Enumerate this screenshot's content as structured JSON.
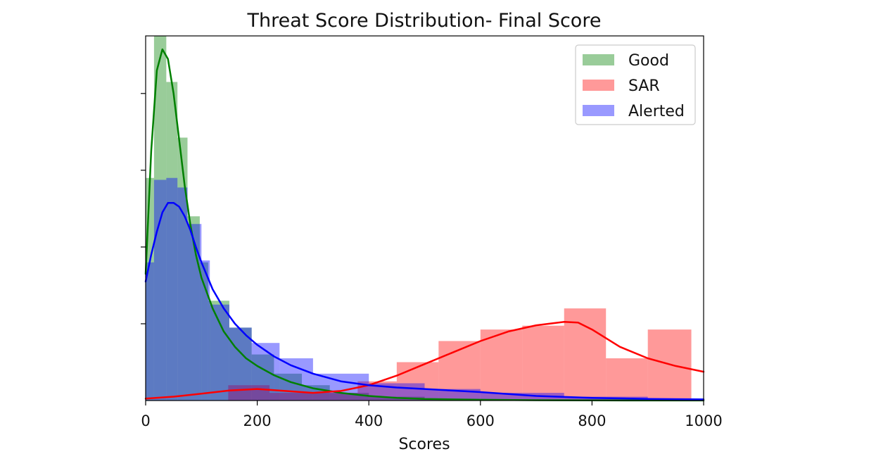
{
  "chart_data": {
    "type": "histogram",
    "title": "Threat Score Distribution- Final Score",
    "xlabel": "Scores",
    "ylabel": "",
    "xlim": [
      0,
      1000
    ],
    "ylim": [
      0,
      0.0095
    ],
    "x_ticks": [
      0,
      200,
      400,
      600,
      800,
      1000
    ],
    "y_ticks": [
      0.002,
      0.004,
      0.006,
      0.008
    ],
    "y_tick_labels_visible": false,
    "grid": false,
    "legend_position": "top-right",
    "series": [
      {
        "name": "Good",
        "color": "#008000",
        "bar_opacity": 0.4,
        "bins": [
          [
            0,
            15,
            0.0058
          ],
          [
            15,
            37,
            0.0095
          ],
          [
            37,
            57,
            0.0083
          ],
          [
            57,
            75,
            0.00685
          ],
          [
            75,
            97,
            0.0048
          ],
          [
            97,
            112,
            0.0036
          ],
          [
            112,
            150,
            0.0026
          ],
          [
            150,
            190,
            0.0019
          ],
          [
            190,
            230,
            0.0012
          ],
          [
            230,
            280,
            0.0007
          ],
          [
            280,
            330,
            0.0004
          ],
          [
            330,
            400,
            0.0002
          ],
          [
            400,
            500,
            0.0001
          ],
          [
            500,
            1000,
            3e-05
          ]
        ],
        "kde": {
          "x": [
            0,
            10,
            20,
            30,
            40,
            50,
            60,
            70,
            80,
            90,
            100,
            120,
            140,
            160,
            180,
            200,
            230,
            260,
            300,
            350,
            400,
            450,
            500,
            600,
            700,
            800,
            900,
            1000
          ],
          "y": [
            0.0033,
            0.0065,
            0.0086,
            0.00915,
            0.0089,
            0.008,
            0.0068,
            0.0056,
            0.0046,
            0.0038,
            0.0032,
            0.0024,
            0.0018,
            0.0014,
            0.0011,
            0.0009,
            0.00066,
            0.00048,
            0.00032,
            0.0002,
            0.00012,
            7e-05,
            4e-05,
            2e-05,
            1e-05,
            5e-06,
            2e-06,
            1e-06
          ]
        }
      },
      {
        "name": "SAR",
        "color": "#ff0000",
        "bar_opacity": 0.4,
        "bins": [
          [
            148,
            222,
            0.0004
          ],
          [
            222,
            300,
            0.0002
          ],
          [
            300,
            380,
            0.0002
          ],
          [
            380,
            450,
            0.0005
          ],
          [
            450,
            525,
            0.001
          ],
          [
            525,
            600,
            0.00155
          ],
          [
            600,
            675,
            0.00185
          ],
          [
            675,
            750,
            0.00195
          ],
          [
            750,
            825,
            0.0024
          ],
          [
            825,
            900,
            0.0011
          ],
          [
            900,
            978,
            0.00185
          ]
        ],
        "kde": {
          "x": [
            0,
            50,
            100,
            150,
            200,
            250,
            300,
            350,
            400,
            450,
            500,
            550,
            600,
            650,
            700,
            750,
            775,
            800,
            850,
            900,
            950,
            1000
          ],
          "y": [
            5e-05,
            0.0001,
            0.00018,
            0.00026,
            0.0003,
            0.00025,
            0.0002,
            0.00025,
            0.0004,
            0.00065,
            0.00095,
            0.00125,
            0.00155,
            0.0018,
            0.00196,
            0.00205,
            0.00203,
            0.00185,
            0.0014,
            0.0011,
            0.0009,
            0.00075
          ]
        }
      },
      {
        "name": "Alerted",
        "color": "#0000ff",
        "bar_opacity": 0.4,
        "bins": [
          [
            0,
            15,
            0.0036
          ],
          [
            15,
            37,
            0.00575
          ],
          [
            37,
            57,
            0.0058
          ],
          [
            57,
            75,
            0.00555
          ],
          [
            75,
            100,
            0.0046
          ],
          [
            100,
            115,
            0.00365
          ],
          [
            115,
            150,
            0.0025
          ],
          [
            150,
            190,
            0.0019
          ],
          [
            190,
            240,
            0.0015
          ],
          [
            240,
            300,
            0.0011
          ],
          [
            300,
            400,
            0.0007
          ],
          [
            400,
            500,
            0.00045
          ],
          [
            500,
            600,
            0.0003
          ],
          [
            600,
            750,
            0.0002
          ],
          [
            750,
            900,
            0.0001
          ],
          [
            900,
            1000,
            5e-05
          ]
        ],
        "kde": {
          "x": [
            0,
            10,
            20,
            30,
            40,
            50,
            60,
            70,
            80,
            90,
            100,
            120,
            140,
            160,
            180,
            200,
            230,
            260,
            300,
            350,
            400,
            450,
            500,
            600,
            700,
            800,
            900,
            1000
          ],
          "y": [
            0.0031,
            0.0038,
            0.0044,
            0.0049,
            0.00515,
            0.00515,
            0.00505,
            0.0048,
            0.00445,
            0.004,
            0.0036,
            0.0029,
            0.0024,
            0.002,
            0.0017,
            0.00145,
            0.00115,
            0.00092,
            0.0007,
            0.0005,
            0.0004,
            0.00034,
            0.0003,
            0.00022,
            0.00012,
            7e-05,
            4e-05,
            3e-05
          ]
        }
      }
    ]
  }
}
